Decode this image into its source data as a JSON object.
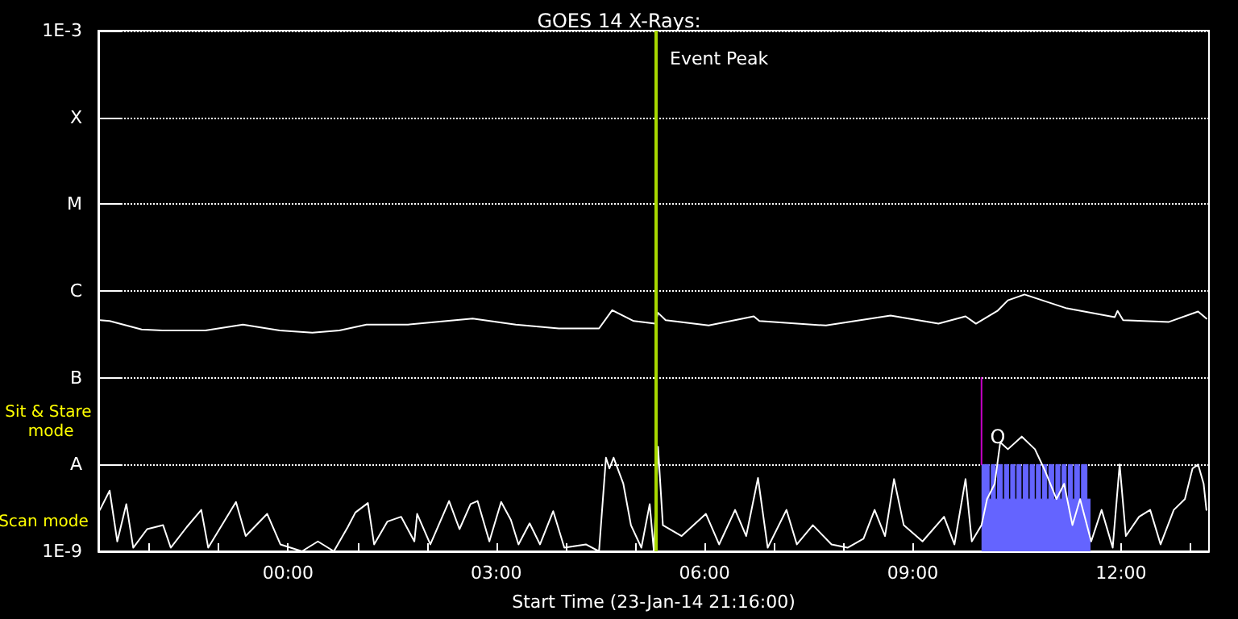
{
  "chart_data": {
    "type": "line",
    "title": "GOES 14 X-Rays:",
    "xlabel": "Start Time (23-Jan-14 21:16:00)",
    "annotations": [
      "Sit & Stare mode",
      "Scan mode",
      "O"
    ],
    "xlim": [
      -2.733,
      13.267
    ],
    "xticks": [
      {
        "value": -2,
        "label": null
      },
      {
        "value": -1,
        "label": null
      },
      {
        "value": 0,
        "label": "00:00"
      },
      {
        "value": 1,
        "label": null
      },
      {
        "value": 2,
        "label": null
      },
      {
        "value": 3,
        "label": "03:00"
      },
      {
        "value": 4,
        "label": null
      },
      {
        "value": 5,
        "label": null
      },
      {
        "value": 6,
        "label": "06:00"
      },
      {
        "value": 7,
        "label": null
      },
      {
        "value": 8,
        "label": null
      },
      {
        "value": 9,
        "label": "09:00"
      },
      {
        "value": 10,
        "label": null
      },
      {
        "value": 11,
        "label": null
      },
      {
        "value": 12,
        "label": "12:00"
      },
      {
        "value": 13,
        "label": null
      }
    ],
    "ylim": [
      1e-09,
      0.001
    ],
    "yticks": [
      {
        "value": 1e-09,
        "label": "1E-9"
      },
      {
        "value": 1e-08,
        "label": "A"
      },
      {
        "value": 1e-07,
        "label": "B"
      },
      {
        "value": 1e-06,
        "label": "C"
      },
      {
        "value": 1e-05,
        "label": "M"
      },
      {
        "value": 0.0001,
        "label": "X"
      },
      {
        "value": 0.001,
        "label": "1E-3"
      }
    ],
    "log": "y",
    "grid": "y",
    "line_style": "solid",
    "ref_lines": [
      {
        "axis": "x",
        "value": 5.29,
        "label": "Event Peak",
        "color": "#a8d800"
      }
    ],
    "series": [
      {
        "type": "area",
        "color": "#6464ff",
        "x": [
          9.99,
          10.1,
          10.1,
          10.13,
          10.13,
          10.19,
          10.19,
          10.22,
          10.22,
          10.29,
          10.29,
          10.32,
          10.32,
          10.38,
          10.38,
          10.41,
          10.41,
          10.47,
          10.47,
          10.5,
          10.5,
          10.56,
          10.56,
          10.59,
          10.59,
          10.66,
          10.66,
          10.69,
          10.69,
          10.75,
          10.75,
          10.78,
          10.78,
          10.84,
          10.84,
          10.87,
          10.87,
          10.93,
          10.93,
          10.96,
          10.96,
          11.03,
          11.03,
          11.06,
          11.06,
          11.12,
          11.12,
          11.15,
          11.15,
          11.21,
          11.21,
          11.24,
          11.24,
          11.3,
          11.3,
          11.33,
          11.33,
          11.4,
          11.4,
          11.43,
          11.43,
          11.51,
          11.51,
          11.56
        ],
        "values": [
          1e-08,
          1e-08,
          4e-09,
          4e-09,
          1e-08,
          1e-08,
          4e-09,
          4e-09,
          1e-08,
          1e-08,
          4e-09,
          4e-09,
          1e-08,
          1e-08,
          4e-09,
          4e-09,
          1e-08,
          1e-08,
          4e-09,
          4e-09,
          1e-08,
          1e-08,
          4e-09,
          4e-09,
          1e-08,
          1e-08,
          4e-09,
          4e-09,
          1e-08,
          1e-08,
          4e-09,
          4e-09,
          1e-08,
          1e-08,
          4e-09,
          4e-09,
          1e-08,
          1e-08,
          4e-09,
          4e-09,
          1e-08,
          1e-08,
          4e-09,
          4e-09,
          1e-08,
          1e-08,
          4e-09,
          4e-09,
          1e-08,
          1e-08,
          4e-09,
          4e-09,
          1e-08,
          1e-08,
          4e-09,
          4e-09,
          1e-08,
          1e-08,
          4e-09,
          4e-09,
          1e-08,
          1e-08,
          4e-09,
          4e-09
        ]
      },
      {
        "type": "line",
        "color": "#ffffff",
        "x": [
          -2.71,
          -2.57,
          -2.11,
          -1.81,
          -1.19,
          -0.65,
          -0.12,
          0.35,
          0.74,
          1.13,
          1.73,
          2.66,
          3.28,
          3.9,
          4.48,
          4.67,
          4.98,
          5.29,
          5.33,
          5.44,
          6.06,
          6.71,
          6.79,
          7.75,
          8.68,
          9.37,
          9.76,
          9.91,
          10.22,
          10.37,
          10.61,
          11.22,
          11.91,
          11.95,
          12.03,
          12.69,
          13.11,
          13.23
        ],
        "values": [
          4.6e-07,
          4.5e-07,
          3.6e-07,
          3.5e-07,
          3.5e-07,
          4.1e-07,
          3.5e-07,
          3.3e-07,
          3.5e-07,
          4.1e-07,
          4.1e-07,
          4.8e-07,
          4.1e-07,
          3.7e-07,
          3.7e-07,
          6e-07,
          4.5e-07,
          4.2e-07,
          5.6e-07,
          4.6e-07,
          4e-07,
          5.1e-07,
          4.5e-07,
          4e-07,
          5.2e-07,
          4.2e-07,
          5.1e-07,
          4.2e-07,
          5.9e-07,
          7.8e-07,
          9.1e-07,
          6.3e-07,
          5e-07,
          5.9e-07,
          4.6e-07,
          4.4e-07,
          5.8e-07,
          4.8e-07
        ]
      },
      {
        "type": "line",
        "color": "#ffffff",
        "x": [
          -2.71,
          -2.57,
          -2.46,
          -2.33,
          -2.23,
          -2.03,
          -1.8,
          -1.69,
          -1.46,
          -1.25,
          -1.15,
          -0.75,
          -0.61,
          -0.3,
          -0.11,
          0.2,
          0.43,
          0.66,
          0.86,
          0.97,
          1.15,
          1.24,
          1.43,
          1.63,
          1.82,
          1.86,
          2.05,
          2.32,
          2.47,
          2.63,
          2.73,
          2.9,
          3.07,
          3.21,
          3.32,
          3.48,
          3.63,
          3.82,
          3.98,
          4.29,
          4.48,
          4.58,
          4.63,
          4.69,
          4.83,
          4.94,
          5.09,
          5.21,
          5.27,
          5.33,
          5.4,
          5.67,
          6.02,
          6.21,
          6.44,
          6.6,
          6.77,
          6.91,
          7.18,
          7.33,
          7.56,
          7.83,
          8.06,
          8.29,
          8.45,
          8.6,
          8.73,
          8.87,
          9.14,
          9.45,
          9.6,
          9.76,
          9.85,
          9.99,
          10.07,
          10.18,
          10.26,
          10.37,
          10.57,
          10.76,
          10.91,
          11.07,
          11.18,
          11.3,
          11.41,
          11.57,
          11.72,
          11.88,
          11.98,
          12.07,
          12.26,
          12.42,
          12.57,
          12.76,
          12.92,
          13.03,
          13.11,
          13.19,
          13.23
        ],
        "values": [
          3e-09,
          5e-09,
          1.3e-09,
          3.5e-09,
          1.1e-09,
          1.8e-09,
          2e-09,
          1.1e-09,
          1.9e-09,
          3e-09,
          1.1e-09,
          3.7e-09,
          1.5e-09,
          2.7e-09,
          1.2e-09,
          1e-09,
          1.3e-09,
          1e-09,
          1.9e-09,
          2.8e-09,
          3.6e-09,
          1.2e-09,
          2.2e-09,
          2.5e-09,
          1.3e-09,
          2.7e-09,
          1.2e-09,
          3.8e-09,
          1.8e-09,
          3.5e-09,
          3.8e-09,
          1.3e-09,
          3.7e-09,
          2.3e-09,
          1.2e-09,
          2.1e-09,
          1.2e-09,
          2.9e-09,
          1.1e-09,
          1.2e-09,
          1e-09,
          1.2e-08,
          9e-09,
          1.2e-08,
          6e-09,
          2e-09,
          1.1e-09,
          3.5e-09,
          1e-09,
          1.6e-08,
          2e-09,
          1.5e-09,
          2.7e-09,
          1.2e-09,
          3e-09,
          1.5e-09,
          7e-09,
          1.1e-09,
          3e-09,
          1.2e-09,
          2e-09,
          1.2e-09,
          1.1e-09,
          1.4e-09,
          3e-09,
          1.5e-09,
          6.8e-09,
          2e-09,
          1.3e-09,
          2.5e-09,
          1.2e-09,
          6.8e-09,
          1.3e-09,
          2e-09,
          4e-09,
          6e-09,
          1.8e-08,
          1.5e-08,
          2.1e-08,
          1.5e-08,
          8.3e-09,
          4e-09,
          6e-09,
          2e-09,
          4e-09,
          1.3e-09,
          3e-09,
          1.1e-09,
          1e-08,
          1.5e-09,
          2.5e-09,
          3e-09,
          1.2e-09,
          3e-09,
          4e-09,
          9e-09,
          1e-08,
          6e-09,
          3e-09
        ]
      },
      {
        "type": "line",
        "color": "#c800c8",
        "x": [
          9.99,
          9.99
        ],
        "values": [
          1e-07,
          1e-08
        ]
      }
    ]
  }
}
